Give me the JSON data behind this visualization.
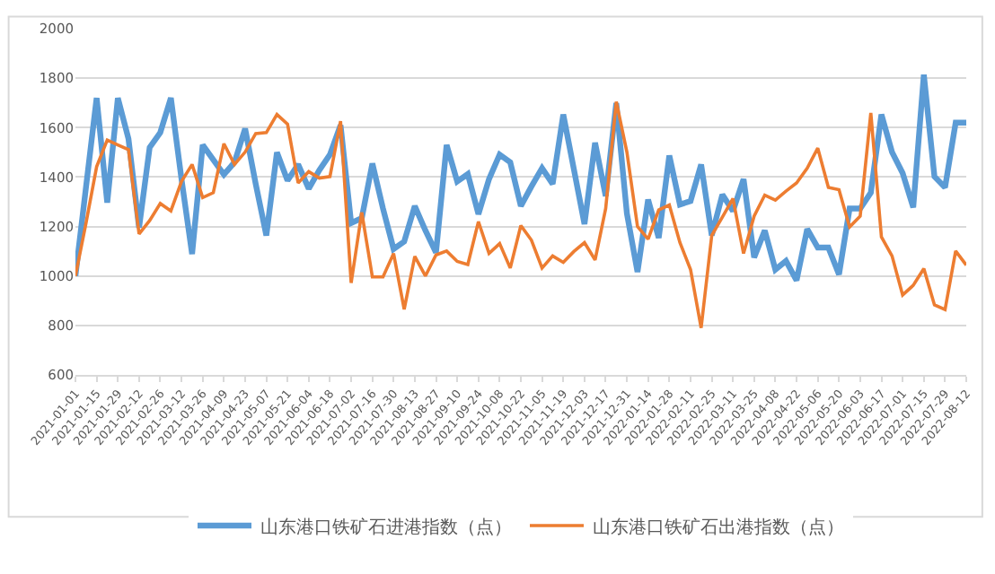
{
  "chart_data": {
    "type": "line",
    "legend": "bottom",
    "grid": "y",
    "marker": "none",
    "line_style": "solid",
    "x": [
      "2021-01-01",
      "2021-01-08",
      "2021-01-15",
      "2021-01-22",
      "2021-01-29",
      "2021-02-05",
      "2021-02-12",
      "2021-02-19",
      "2021-02-26",
      "2021-03-05",
      "2021-03-12",
      "2021-03-19",
      "2021-03-26",
      "2021-04-02",
      "2021-04-09",
      "2021-04-16",
      "2021-04-23",
      "2021-04-30",
      "2021-05-07",
      "2021-05-14",
      "2021-05-21",
      "2021-05-28",
      "2021-06-04",
      "2021-06-11",
      "2021-06-18",
      "2021-06-25",
      "2021-07-02",
      "2021-07-09",
      "2021-07-16",
      "2021-07-23",
      "2021-07-30",
      "2021-08-06",
      "2021-08-13",
      "2021-08-20",
      "2021-08-27",
      "2021-09-03",
      "2021-09-10",
      "2021-09-17",
      "2021-09-24",
      "2021-10-01",
      "2021-10-08",
      "2021-10-15",
      "2021-10-22",
      "2021-10-29",
      "2021-11-05",
      "2021-11-12",
      "2021-11-19",
      "2021-11-26",
      "2021-12-03",
      "2021-12-10",
      "2021-12-17",
      "2021-12-24",
      "2021-12-31",
      "2022-01-07",
      "2022-01-14",
      "2022-01-21",
      "2022-01-28",
      "2022-02-04",
      "2022-02-11",
      "2022-02-18",
      "2022-02-25",
      "2022-03-04",
      "2022-03-11",
      "2022-03-18",
      "2022-03-25",
      "2022-04-01",
      "2022-04-08",
      "2022-04-15",
      "2022-04-22",
      "2022-04-29",
      "2022-05-06",
      "2022-05-13",
      "2022-05-20",
      "2022-05-27",
      "2022-06-03",
      "2022-06-10",
      "2022-06-17",
      "2022-06-24",
      "2022-07-01",
      "2022-07-08",
      "2022-07-15",
      "2022-07-22",
      "2022-07-29",
      "2022-08-05",
      "2022-08-12"
    ],
    "xlim": [
      "2021-01-01",
      "2022-08-12"
    ],
    "xticks": [
      "2021-01-01",
      "2021-01-15",
      "2021-01-29",
      "2021-02-12",
      "2021-02-26",
      "2021-03-12",
      "2021-03-26",
      "2021-04-09",
      "2021-04-23",
      "2021-05-07",
      "2021-05-21",
      "2021-06-04",
      "2021-06-18",
      "2021-07-02",
      "2021-07-16",
      "2021-07-30",
      "2021-08-13",
      "2021-08-27",
      "2021-09-10",
      "2021-09-24",
      "2021-10-08",
      "2021-10-22",
      "2021-11-05",
      "2021-11-19",
      "2021-12-03",
      "2021-12-17",
      "2021-12-31",
      "2022-01-14",
      "2022-01-28",
      "2022-02-11",
      "2022-02-25",
      "2022-03-11",
      "2022-03-25",
      "2022-04-08",
      "2022-04-22",
      "2022-05-06",
      "2022-05-20",
      "2022-06-03",
      "2022-06-17",
      "2022-07-01",
      "2022-07-15",
      "2022-07-29",
      "2022-08-12"
    ],
    "ylim": [
      600,
      2000
    ],
    "yticks": [
      600,
      800,
      1000,
      1200,
      1400,
      1600,
      1800,
      2000
    ],
    "series": [
      {
        "name": "山东港口铁矿石进港指数（点）",
        "color": "#5b9bd5",
        "values": [
          1000,
          1360,
          1720,
          1297,
          1720,
          1555,
          1195,
          1520,
          1580,
          1720,
          1392,
          1089,
          1530,
          1470,
          1410,
          1460,
          1596,
          1372,
          1164,
          1500,
          1386,
          1451,
          1353,
          1428,
          1491,
          1610,
          1214,
          1234,
          1455,
          1273,
          1109,
          1139,
          1283,
          1184,
          1095,
          1530,
          1382,
          1412,
          1250,
          1392,
          1491,
          1460,
          1283,
          1362,
          1436,
          1372,
          1653,
          1432,
          1210,
          1539,
          1323,
          1699,
          1253,
          1016,
          1309,
          1154,
          1487,
          1289,
          1303,
          1451,
          1164,
          1329,
          1263,
          1392,
          1075,
          1184,
          1026,
          1061,
          982,
          1190,
          1115,
          1115,
          1006,
          1273,
          1273,
          1337,
          1653,
          1501,
          1416,
          1277,
          1814,
          1402,
          1358,
          1620,
          1620
        ]
      },
      {
        "name": "山东港口铁矿石出港指数（点）",
        "color": "#ed7d31",
        "values": [
          1000,
          1214,
          1442,
          1550,
          1530,
          1511,
          1170,
          1224,
          1293,
          1263,
          1382,
          1451,
          1317,
          1337,
          1535,
          1451,
          1501,
          1576,
          1580,
          1653,
          1614,
          1376,
          1422,
          1396,
          1402,
          1626,
          972,
          1257,
          996,
          996,
          1091,
          865,
          1079,
          1000,
          1085,
          1101,
          1059,
          1046,
          1220,
          1091,
          1131,
          1032,
          1204,
          1145,
          1032,
          1081,
          1055,
          1099,
          1135,
          1065,
          1273,
          1705,
          1501,
          1200,
          1149,
          1267,
          1287,
          1135,
          1026,
          790,
          1164,
          1238,
          1313,
          1091,
          1242,
          1327,
          1307,
          1343,
          1376,
          1436,
          1517,
          1358,
          1349,
          1198,
          1242,
          1659,
          1158,
          1081,
          923,
          962,
          1030,
          883,
          864,
          1101,
          1044
        ]
      }
    ]
  }
}
